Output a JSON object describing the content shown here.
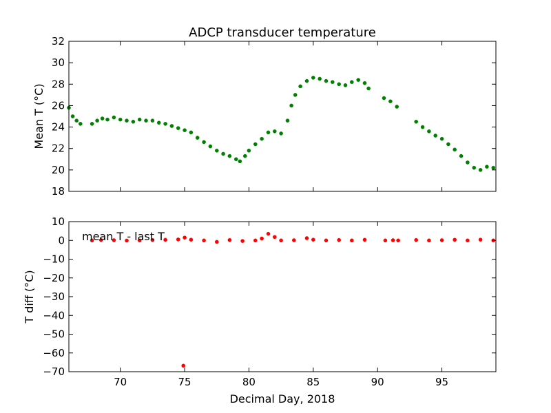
{
  "figure": {
    "title": "ADCP transducer temperature",
    "xlabel": "Decimal Day, 2018"
  },
  "chart_data": [
    {
      "type": "scatter",
      "title": "ADCP transducer temperature",
      "xlabel": "",
      "ylabel": "Mean T (°C)",
      "xlim": [
        66,
        99.2
      ],
      "ylim": [
        18,
        32
      ],
      "xticks": [
        70,
        75,
        80,
        85,
        90,
        95
      ],
      "yticks": [
        18,
        20,
        22,
        24,
        26,
        28,
        30,
        32
      ],
      "grid": false,
      "series": [
        {
          "color": "#008000",
          "x": [
            66.0,
            66.3,
            66.6,
            66.9,
            67.8,
            68.2,
            68.6,
            69.0,
            69.5,
            70.0,
            70.5,
            71.0,
            71.5,
            72.0,
            72.5,
            73.0,
            73.5,
            74.0,
            74.5,
            75.0,
            75.5,
            76.0,
            76.5,
            77.0,
            77.5,
            78.0,
            78.5,
            79.0,
            79.3,
            79.7,
            80.0,
            80.5,
            81.0,
            81.5,
            82.0,
            82.5,
            83.0,
            83.3,
            83.6,
            84.0,
            84.5,
            85.0,
            85.5,
            86.0,
            86.5,
            87.0,
            87.5,
            88.0,
            88.5,
            89.0,
            89.3,
            90.5,
            91.0,
            91.5,
            93.0,
            93.5,
            94.0,
            94.5,
            95.0,
            95.5,
            96.0,
            96.5,
            97.0,
            97.5,
            98.0,
            98.5,
            99.0
          ],
          "y": [
            25.8,
            25.0,
            24.6,
            24.3,
            24.3,
            24.6,
            24.8,
            24.7,
            24.9,
            24.7,
            24.6,
            24.5,
            24.7,
            24.6,
            24.6,
            24.4,
            24.3,
            24.1,
            23.9,
            23.7,
            23.5,
            23.0,
            22.6,
            22.2,
            21.8,
            21.5,
            21.3,
            21.0,
            20.8,
            21.3,
            21.8,
            22.4,
            22.9,
            23.5,
            23.6,
            23.4,
            24.6,
            26.0,
            27.0,
            27.8,
            28.3,
            28.6,
            28.5,
            28.3,
            28.2,
            28.0,
            27.9,
            28.2,
            28.4,
            28.1,
            27.6,
            26.7,
            26.4,
            25.9,
            24.5,
            24.0,
            23.6,
            23.2,
            22.9,
            22.4,
            21.9,
            21.3,
            20.7,
            20.2,
            20.0,
            20.3,
            20.2
          ]
        }
      ]
    },
    {
      "type": "scatter",
      "title": "",
      "xlabel": "Decimal Day, 2018",
      "ylabel": "T diff (°C)",
      "xlim": [
        66,
        99.2
      ],
      "ylim": [
        -70,
        10
      ],
      "xticks": [
        70,
        75,
        80,
        85,
        90,
        95
      ],
      "xticklabels": [
        "70",
        "75",
        "80",
        "85",
        "90",
        "95"
      ],
      "yticks": [
        -70,
        -60,
        -50,
        -40,
        -30,
        -20,
        -10,
        0,
        10
      ],
      "grid": false,
      "annotation": "mean T - last T",
      "series": [
        {
          "color": "#ff0000",
          "x": [
            67.8,
            68.5,
            69.5,
            70.5,
            71.5,
            72.5,
            73.5,
            74.5,
            75.0,
            75.5,
            76.5,
            77.5,
            78.5,
            79.5,
            80.5,
            81.0,
            81.5,
            82.0,
            82.5,
            83.5,
            84.5,
            85.0,
            86.0,
            87.0,
            88.0,
            89.0,
            90.6,
            91.2,
            91.6,
            93.0,
            94.0,
            95.0,
            96.0,
            97.0,
            98.0,
            99.0,
            74.9
          ],
          "y": [
            0.0,
            0.2,
            0.1,
            -0.1,
            0.0,
            0.2,
            0.3,
            0.5,
            1.5,
            0.4,
            0.0,
            -0.8,
            0.2,
            -0.3,
            0.0,
            1.0,
            3.5,
            1.8,
            0.0,
            0.1,
            1.2,
            0.4,
            0.0,
            0.2,
            0.0,
            0.3,
            0.0,
            0.1,
            0.0,
            0.2,
            0.0,
            0.1,
            0.3,
            0.0,
            0.4,
            0.0,
            -66.8
          ]
        }
      ]
    }
  ]
}
